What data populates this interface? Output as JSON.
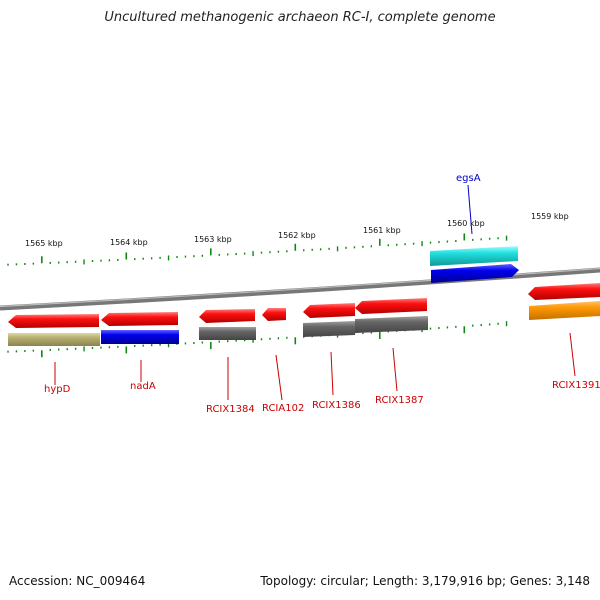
{
  "title": "Uncultured methanogenic archaeon RC-I, complete genome",
  "footer": {
    "accession": "Accession: NC_009464",
    "topology": "Topology: circular; Length: 3,179,916 bp; Genes: 3,148"
  },
  "kbp_labels": [
    "1565 kbp",
    "1564 kbp",
    "1563 kbp",
    "1562 kbp",
    "1561 kbp",
    "1560 kbp",
    "1559 kbp"
  ],
  "genes": [
    {
      "name": "hypD",
      "color": "#cc0000"
    },
    {
      "name": "nadA",
      "color": "#cc0000"
    },
    {
      "name": "RCIX1384",
      "color": "#cc0000"
    },
    {
      "name": "RCIA102",
      "color": "#cc0000"
    },
    {
      "name": "RCIX1386",
      "color": "#cc0000"
    },
    {
      "name": "RCIX1387",
      "color": "#cc0000"
    },
    {
      "name": "RCIX1391",
      "color": "#cc0000"
    },
    {
      "name": "egsA",
      "color": "#0000cc"
    }
  ],
  "colors": {
    "gene_red": "#ee1111",
    "backbone": "#888888",
    "ticks": "#118811",
    "cog_olive": "#b8b070",
    "cog_blue": "#1010dd",
    "cog_gray": "#666666",
    "cog_cyan": "#22dddd",
    "cog_orange": "#ff9900"
  }
}
